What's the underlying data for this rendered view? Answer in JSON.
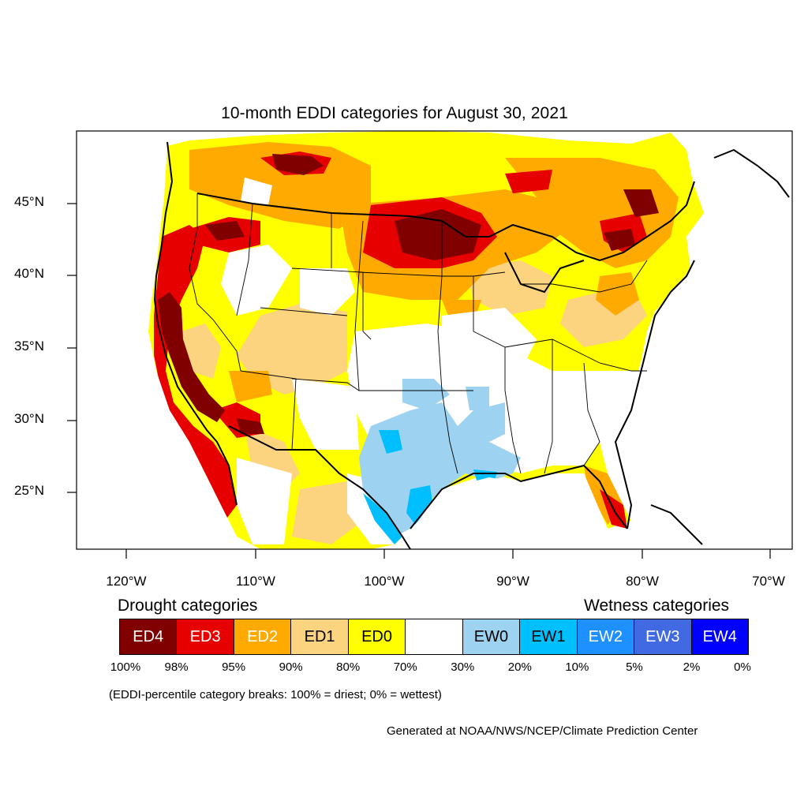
{
  "title": "10-month EDDI categories for August 30, 2021",
  "axes": {
    "lat_labels": [
      "45°N",
      "40°N",
      "35°N",
      "30°N",
      "25°N"
    ],
    "lon_labels": [
      "120°W",
      "110°W",
      "100°W",
      "90°W",
      "80°W",
      "70°W"
    ]
  },
  "legend": {
    "drought_heading": "Drought categories",
    "wetness_heading": "Wetness categories",
    "categories": [
      {
        "label": "ED4",
        "color": "#800000",
        "text_color": "#ffffff"
      },
      {
        "label": "ED3",
        "color": "#e60000",
        "text_color": "#ffffff"
      },
      {
        "label": "ED2",
        "color": "#ffaa00",
        "text_color": "#ffffff"
      },
      {
        "label": "ED1",
        "color": "#fcd37f",
        "text_color": "#000000"
      },
      {
        "label": "ED0",
        "color": "#ffff00",
        "text_color": "#000000"
      },
      {
        "label": "",
        "color": "#ffffff",
        "text_color": "#000000"
      },
      {
        "label": "EW0",
        "color": "#9dd3f0",
        "text_color": "#000000"
      },
      {
        "label": "EW1",
        "color": "#00bfff",
        "text_color": "#000000"
      },
      {
        "label": "EW2",
        "color": "#1e90ff",
        "text_color": "#ffffff"
      },
      {
        "label": "EW3",
        "color": "#4169e1",
        "text_color": "#ffffff"
      },
      {
        "label": "EW4",
        "color": "#0000ff",
        "text_color": "#ffffff"
      }
    ],
    "breaks": [
      "100%",
      "98%",
      "95%",
      "90%",
      "80%",
      "70%",
      "30%",
      "20%",
      "10%",
      "5%",
      "2%",
      "0%"
    ]
  },
  "note": "(EDDI-percentile category breaks: 100% = driest; 0% = wettest)",
  "credit": "Generated at NOAA/NWS/NCEP/Climate Prediction Center"
}
